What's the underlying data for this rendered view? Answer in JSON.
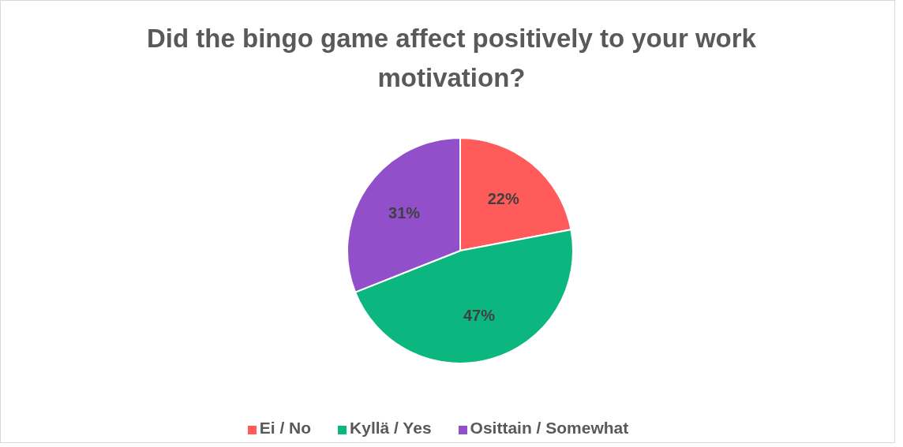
{
  "chart_data": {
    "type": "pie",
    "title": "Did the bingo game affect positively to your work motivation?",
    "categories": [
      "Ei / No",
      "Kyllä / Yes",
      "Osittain / Somewhat"
    ],
    "values": [
      22,
      47,
      31
    ],
    "colors": [
      "#ff5b5b",
      "#0cb77f",
      "#914fca"
    ],
    "value_labels": [
      "22%",
      "47%",
      "31%"
    ],
    "legend": "bottom"
  }
}
